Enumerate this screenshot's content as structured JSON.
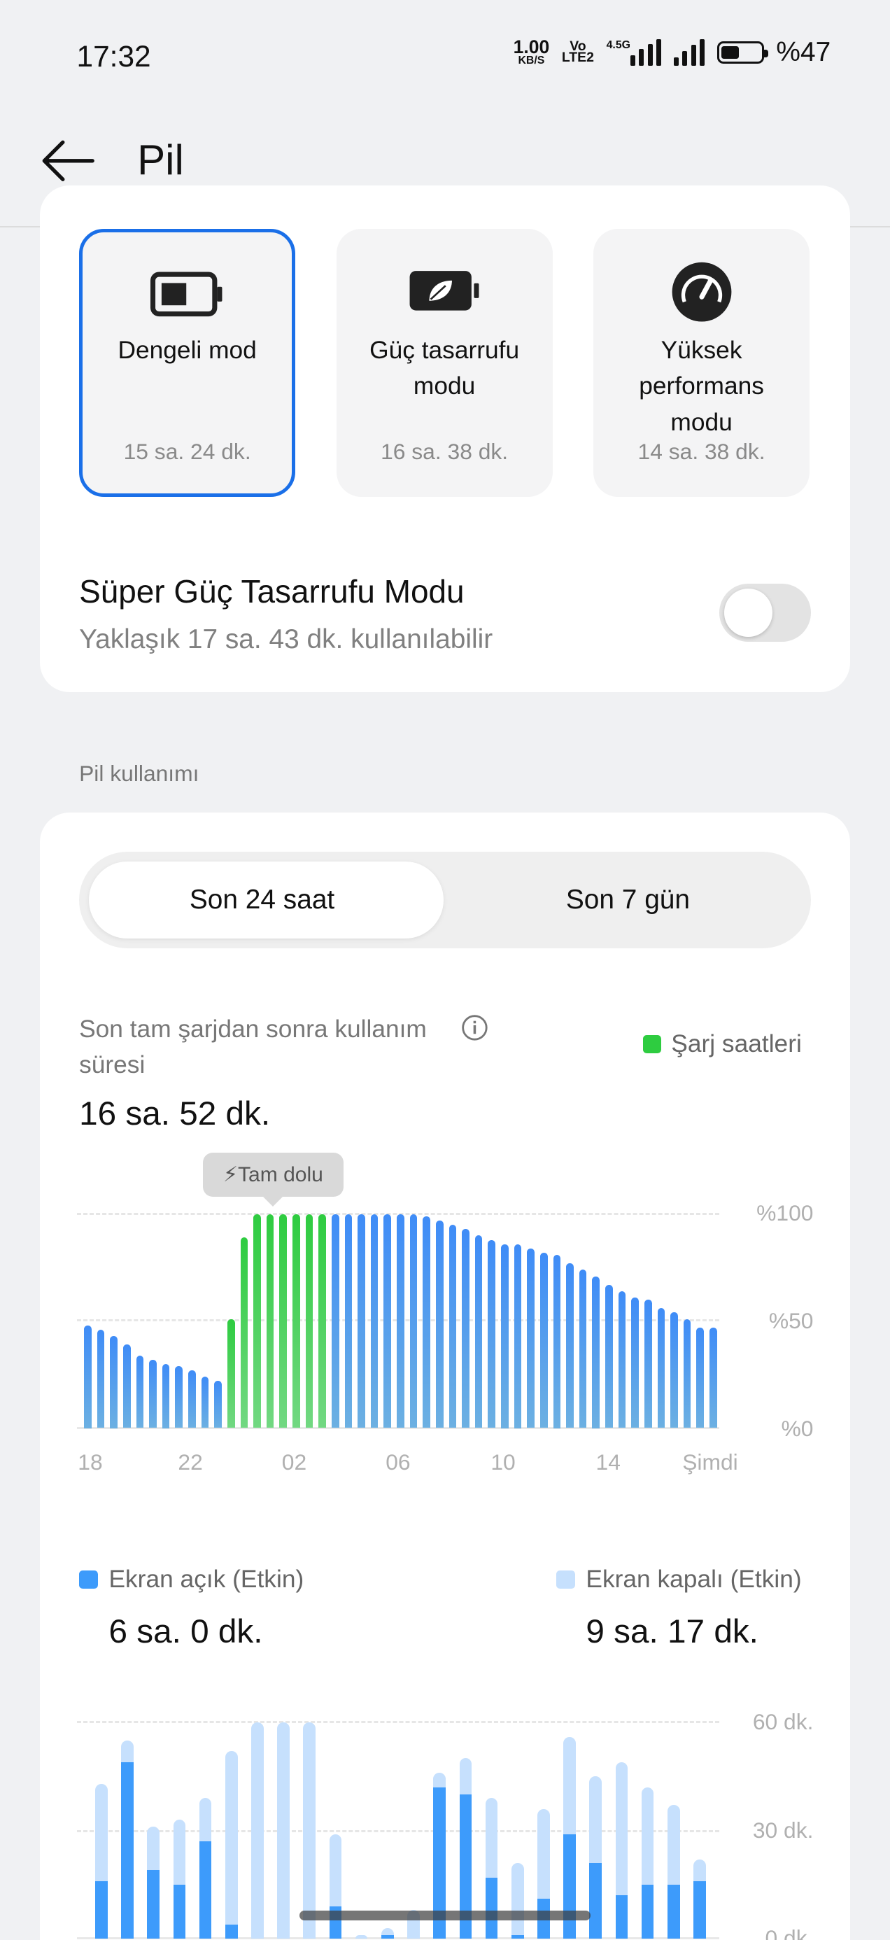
{
  "status_bar": {
    "time": "17:32",
    "net_speed": "1.00",
    "net_unit": "KB/S",
    "volte": "Vo",
    "lte": "LTE",
    "sim": "2",
    "network": "4.5G",
    "battery_percent": "%47"
  },
  "header": {
    "title": "Pil",
    "back_icon": "arrow-left-icon"
  },
  "modes": [
    {
      "label": "Dengeli mod",
      "time": "15 sa. 24 dk.",
      "selected": true,
      "icon": "battery-icon"
    },
    {
      "label": "Güç tasarrufu modu",
      "time": "16 sa. 38 dk.",
      "selected": false,
      "icon": "leaf-battery-icon"
    },
    {
      "label": "Yüksek performans modu",
      "time": "14 sa. 38 dk.",
      "selected": false,
      "icon": "speedometer-icon"
    }
  ],
  "super_saver": {
    "title": "Süper Güç Tasarrufu Modu",
    "subtitle": "Yaklaşık 17 sa. 43 dk. kullanılabilir",
    "enabled": false
  },
  "usage_section": {
    "title": "Pil kullanımı"
  },
  "tabs": [
    {
      "label": "Son 24 saat",
      "selected": true
    },
    {
      "label": "Son 7 gün",
      "selected": false
    }
  ],
  "usage_since_charge": {
    "label": "Son tam şarjdan sonra kullanım süresi",
    "value": "16 sa. 52 dk.",
    "legend_charging": "Şarj saatleri"
  },
  "screen": {
    "on_label": "Ekran açık (Etkin)",
    "on_value": "6 sa. 0 dk.",
    "off_label": "Ekran kapalı (Etkin)",
    "off_value": "9 sa. 17 dk."
  },
  "colors": {
    "accent": "#1a6fe8",
    "battery_bar": "#3f8cf7",
    "charging_bar": "#2ecc40",
    "screen_on": "#3d9bfb",
    "screen_off": "#c6e0fd"
  },
  "chart_data": [
    {
      "type": "bar",
      "title": "",
      "annotation": "Tam dolu",
      "y_ticks": [
        "%100",
        "%50",
        "%0"
      ],
      "x_ticks": [
        "18",
        "22",
        "02",
        "06",
        "10",
        "14",
        "Şimdi"
      ],
      "ylim": [
        0,
        100
      ],
      "grid": true,
      "values": [
        48,
        46,
        43,
        39,
        34,
        32,
        30,
        29,
        27,
        24,
        22,
        51,
        89,
        100,
        100,
        100,
        100,
        100,
        100,
        100,
        100,
        100,
        100,
        100,
        100,
        100,
        99,
        97,
        95,
        93,
        90,
        88,
        86,
        86,
        84,
        82,
        81,
        77,
        74,
        71,
        67,
        64,
        61,
        60,
        56,
        54,
        51,
        47,
        47
      ],
      "charging": [
        false,
        false,
        false,
        false,
        false,
        false,
        false,
        false,
        false,
        false,
        false,
        true,
        true,
        true,
        true,
        true,
        true,
        true,
        true,
        false,
        false,
        false,
        false,
        false,
        false,
        false,
        false,
        false,
        false,
        false,
        false,
        false,
        false,
        false,
        false,
        false,
        false,
        false,
        false,
        false,
        false,
        false,
        false,
        false,
        false,
        false,
        false,
        false,
        false
      ]
    },
    {
      "type": "bar",
      "stacked": true,
      "y_ticks": [
        "60 dk.",
        "30 dk.",
        "0 dk."
      ],
      "ylim": [
        0,
        60
      ],
      "grid": true,
      "series": [
        {
          "name": "Ekran açık (Etkin)",
          "values": [
            16,
            49,
            19,
            15,
            27,
            4,
            0,
            0,
            0,
            9,
            0,
            1,
            0,
            42,
            40,
            17,
            1,
            11,
            29,
            21,
            12,
            15,
            15,
            16
          ]
        },
        {
          "name": "Ekran kapalı (Etkin)",
          "values": [
            27,
            6,
            12,
            18,
            12,
            48,
            60,
            60,
            60,
            20,
            1,
            2,
            8,
            4,
            10,
            22,
            20,
            25,
            27,
            24,
            37,
            27,
            22,
            6
          ]
        }
      ]
    }
  ]
}
